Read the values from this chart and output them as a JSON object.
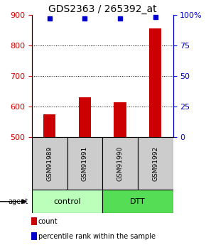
{
  "title": "GDS2363 / 265392_at",
  "samples": [
    "GSM91989",
    "GSM91991",
    "GSM91990",
    "GSM91992"
  ],
  "bar_values": [
    575,
    630,
    615,
    855
  ],
  "percentile_values": [
    97,
    97,
    97,
    98
  ],
  "ylim_left": [
    500,
    900
  ],
  "ylim_right": [
    0,
    100
  ],
  "yticks_left": [
    500,
    600,
    700,
    800,
    900
  ],
  "yticks_right": [
    0,
    25,
    50,
    75,
    100
  ],
  "bar_color": "#cc0000",
  "percentile_color": "#0000cc",
  "groups": [
    {
      "label": "control",
      "indices": [
        0,
        1
      ],
      "color": "#bbffbb"
    },
    {
      "label": "DTT",
      "indices": [
        2,
        3
      ],
      "color": "#55dd55"
    }
  ],
  "agent_label": "agent",
  "left_tick_color": "#cc0000",
  "right_tick_color": "#0000cc",
  "background_sample_box": "#cccccc",
  "title_fontsize": 10,
  "tick_fontsize": 8,
  "sample_fontsize": 6.5,
  "group_fontsize": 8,
  "legend_fontsize": 7
}
